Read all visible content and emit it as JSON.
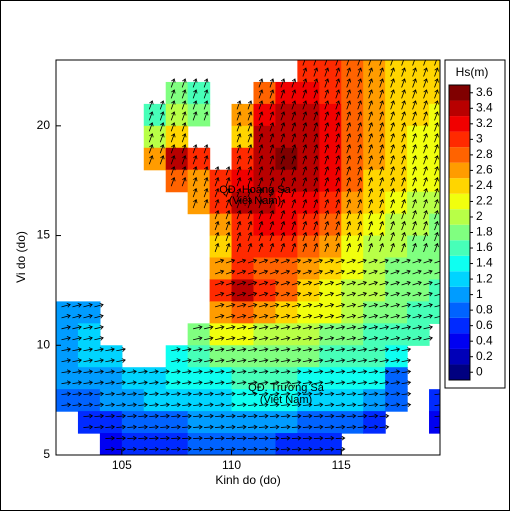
{
  "chart_data": {
    "type": "heatmap",
    "xlabel": "Kinh do (do)",
    "ylabel": "Vi do (do)",
    "xlim": [
      102,
      119.5
    ],
    "ylim": [
      5,
      23
    ],
    "xticks": [
      105,
      110,
      115
    ],
    "yticks": [
      5,
      10,
      15,
      20
    ],
    "x": [
      102.5,
      103.5,
      104.5,
      105.5,
      106.5,
      107.5,
      108.5,
      109.5,
      110.5,
      111.5,
      112.5,
      113.5,
      114.5,
      115.5,
      116.5,
      117.5,
      118.5,
      119.5
    ],
    "y": [
      22.5,
      21.5,
      20.5,
      19.5,
      18.5,
      17.5,
      16.5,
      15.5,
      14.5,
      13.5,
      12.5,
      11.5,
      10.5,
      9.5,
      8.5,
      7.5,
      6.5,
      5.5
    ],
    "values": [
      [
        null,
        null,
        null,
        null,
        null,
        null,
        null,
        null,
        null,
        null,
        null,
        3.0,
        3.0,
        2.8,
        2.6,
        2.5,
        2.4,
        2.4
      ],
      [
        null,
        null,
        null,
        null,
        null,
        1.8,
        1.6,
        null,
        null,
        2.8,
        3.2,
        3.2,
        3.0,
        2.8,
        2.6,
        2.5,
        2.4,
        2.4
      ],
      [
        null,
        null,
        null,
        null,
        1.6,
        2.0,
        1.8,
        null,
        2.6,
        3.2,
        3.4,
        3.4,
        3.2,
        2.8,
        2.6,
        2.5,
        2.4,
        2.3
      ],
      [
        null,
        null,
        null,
        null,
        2.0,
        2.4,
        null,
        null,
        2.4,
        3.4,
        3.5,
        3.4,
        3.2,
        2.8,
        2.6,
        2.4,
        2.3,
        2.2
      ],
      [
        null,
        null,
        null,
        null,
        2.6,
        3.4,
        3.0,
        null,
        3.0,
        3.5,
        3.6,
        3.5,
        3.2,
        2.8,
        2.6,
        2.4,
        2.3,
        2.2
      ],
      [
        null,
        null,
        null,
        null,
        null,
        2.8,
        2.6,
        3.0,
        3.3,
        3.5,
        3.5,
        3.4,
        3.2,
        2.8,
        2.5,
        2.4,
        2.2,
        2.2
      ],
      [
        null,
        null,
        null,
        null,
        null,
        null,
        2.6,
        3.0,
        3.4,
        3.4,
        3.3,
        3.2,
        3.0,
        2.6,
        2.4,
        2.2,
        2.1,
        2.0
      ],
      [
        null,
        null,
        null,
        null,
        null,
        null,
        null,
        2.6,
        3.0,
        3.2,
        3.2,
        3.0,
        2.8,
        2.4,
        2.2,
        2.1,
        2.0,
        1.9
      ],
      [
        null,
        null,
        null,
        null,
        null,
        null,
        null,
        2.4,
        3.0,
        3.0,
        3.0,
        2.8,
        2.6,
        2.3,
        2.1,
        2.0,
        1.9,
        1.8
      ],
      [
        null,
        null,
        null,
        null,
        null,
        null,
        null,
        2.6,
        3.0,
        2.8,
        2.8,
        2.6,
        2.4,
        2.2,
        2.0,
        1.9,
        1.8,
        1.8
      ],
      [
        null,
        null,
        null,
        null,
        null,
        null,
        null,
        3.0,
        3.4,
        3.0,
        2.7,
        2.5,
        2.3,
        2.1,
        2.0,
        1.9,
        1.8,
        1.7
      ],
      [
        1.0,
        1.0,
        null,
        null,
        null,
        null,
        null,
        2.6,
        2.8,
        2.6,
        2.4,
        2.3,
        2.2,
        2.0,
        1.9,
        1.8,
        1.7,
        1.6
      ],
      [
        1.0,
        1.1,
        null,
        null,
        null,
        null,
        1.8,
        2.2,
        2.2,
        2.1,
        2.0,
        2.0,
        1.9,
        1.8,
        1.7,
        1.6,
        1.6,
        null
      ],
      [
        1.0,
        1.1,
        1.2,
        null,
        null,
        1.4,
        1.6,
        1.8,
        1.9,
        1.9,
        1.8,
        1.8,
        1.7,
        1.6,
        1.6,
        1.5,
        null,
        null
      ],
      [
        1.0,
        1.0,
        1.0,
        1.1,
        1.2,
        1.3,
        1.4,
        1.5,
        1.6,
        1.6,
        1.6,
        1.5,
        1.5,
        1.4,
        1.3,
        0.8,
        null,
        null
      ],
      [
        0.8,
        0.9,
        1.0,
        1.0,
        1.1,
        1.1,
        1.2,
        1.2,
        1.3,
        1.3,
        1.3,
        1.2,
        1.2,
        1.1,
        1.0,
        0.8,
        null,
        0.6
      ],
      [
        null,
        0.6,
        0.7,
        0.8,
        0.9,
        0.9,
        1.0,
        1.0,
        1.0,
        1.0,
        1.0,
        0.9,
        0.8,
        0.8,
        0.6,
        null,
        null,
        0.5
      ],
      [
        null,
        null,
        0.5,
        0.6,
        0.7,
        0.7,
        0.8,
        0.8,
        0.8,
        0.8,
        0.7,
        0.6,
        0.6,
        null,
        null,
        null,
        null,
        null
      ]
    ],
    "colormap": "jet",
    "colorbar": {
      "title": "Hs(m)",
      "clim": [
        -0.1,
        3.7
      ],
      "ticks": [
        0,
        0.2,
        0.4,
        0.6,
        0.8,
        1,
        1.2,
        1.4,
        1.6,
        1.8,
        2,
        2.2,
        2.4,
        2.6,
        2.8,
        3,
        3.2,
        3.4,
        3.6
      ]
    },
    "annotations": [
      "QĐ. Hoàng Sa",
      "(Việt Nam)",
      "QĐ. Trường Sa",
      "(Việt Nam)"
    ]
  }
}
